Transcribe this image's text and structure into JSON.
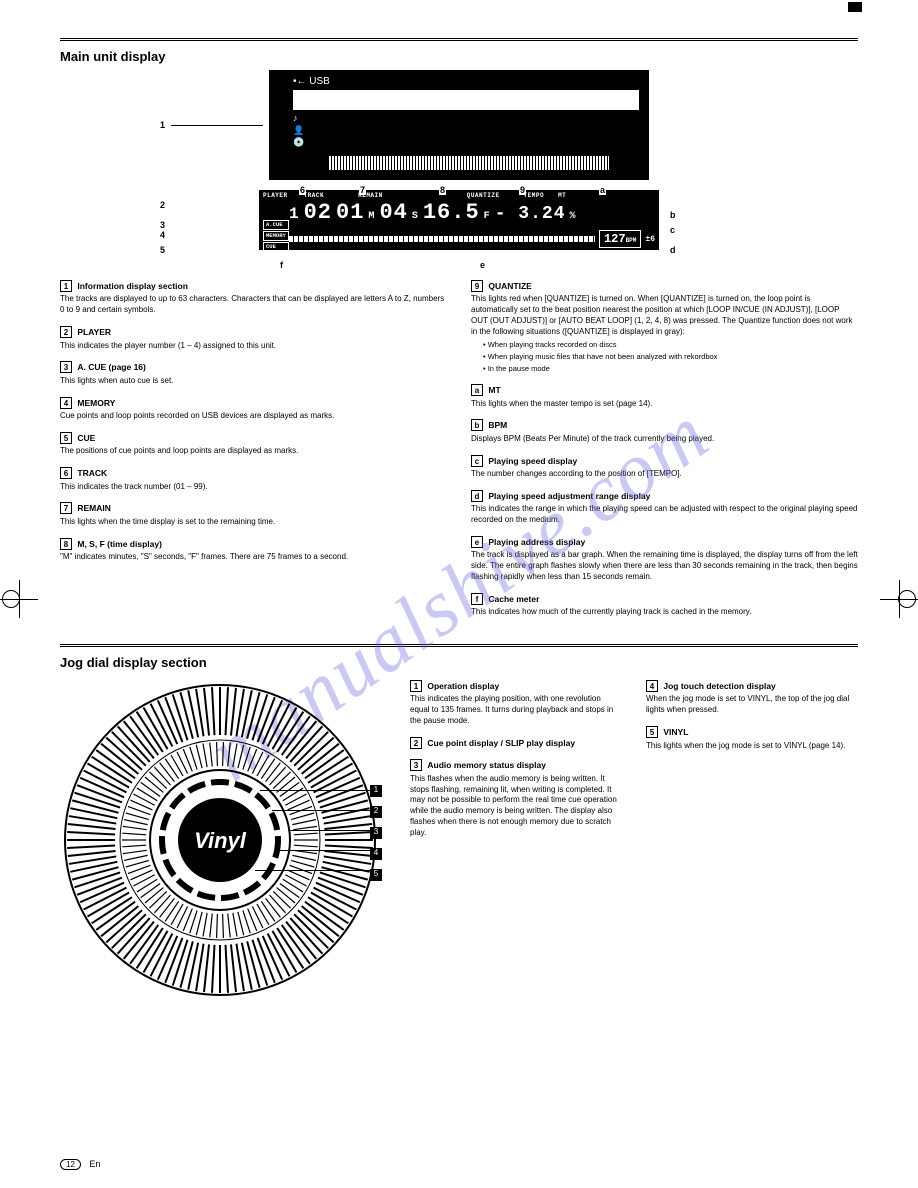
{
  "watermark": "manualshive.com",
  "main_display": {
    "section_title": "Main unit display",
    "usb_icon_label": "USB",
    "info_icons": [
      "♪",
      "👤",
      "💿"
    ],
    "leader_numbers": [
      "1",
      "2",
      "3",
      "4",
      "5",
      "6",
      "7",
      "8",
      "9",
      "a",
      "b",
      "c",
      "d",
      "e",
      "f"
    ]
  },
  "lcd": {
    "top_labels": [
      "PLAYER",
      "TRACK",
      "REMAIN",
      "",
      "QUANTIZE",
      "TEMPO",
      "MT"
    ],
    "side_labels": [
      "A.CUE",
      "MEMORY",
      "CUE"
    ],
    "player": "1",
    "track": "02",
    "time_m": "01",
    "time_m_unit": "M",
    "time_s": "04",
    "time_s_unit": "S",
    "time_f": "16.5",
    "time_f_unit": "F",
    "tempo": "- 3.24",
    "tempo_unit": "%",
    "bpm": "127",
    "bpm_unit": "BPM",
    "range": "±6"
  },
  "items_left": [
    {
      "n": "1",
      "title": "Information display section",
      "body": "The tracks are displayed to up to 63 characters. Characters that can be displayed are letters A to Z, numbers 0 to 9 and certain symbols."
    },
    {
      "n": "2",
      "title": "PLAYER",
      "body": "This indicates the player number (1 – 4) assigned to this unit."
    },
    {
      "n": "3",
      "title": "A. CUE (page 16)",
      "body": "This lights when auto cue is set."
    },
    {
      "n": "4",
      "title": "MEMORY",
      "body": "Cue points and loop points recorded on USB devices are displayed as marks."
    },
    {
      "n": "5",
      "title": "CUE",
      "body": "The positions of cue points and loop points are displayed as marks."
    },
    {
      "n": "6",
      "title": "TRACK",
      "body": "This indicates the track number (01 – 99)."
    },
    {
      "n": "7",
      "title": "REMAIN",
      "body": "This lights when the time display is set to the remaining time."
    },
    {
      "n": "8",
      "title": "M, S, F (time display)",
      "body": "\"M\" indicates minutes, \"S\" seconds, \"F\" frames. There are 75 frames to a second."
    }
  ],
  "items_right": [
    {
      "n": "9",
      "title": "QUANTIZE",
      "body": "This lights red when [QUANTIZE] is turned on.\nWhen [QUANTIZE] is turned on, the loop point is automatically set to the beat position nearest the position at which [LOOP IN/CUE (IN ADJUST)], [LOOP OUT (OUT ADJUST)] or [AUTO BEAT LOOP] (1, 2, 4, 8) was pressed.\nThe Quantize function does not work in the following situations ([QUANTIZE] is displayed in gray):",
      "sub": [
        "When playing tracks recorded on discs",
        "When playing music files that have not been analyzed with rekordbox",
        "In the pause mode"
      ]
    },
    {
      "n": "a",
      "title": "MT",
      "body": "This lights when the master tempo is set (page 14)."
    },
    {
      "n": "b",
      "title": "BPM",
      "body": "Displays BPM (Beats Per Minute) of the track currently being played."
    },
    {
      "n": "c",
      "title": "Playing speed display",
      "body": "The number changes according to the position of [TEMPO]."
    },
    {
      "n": "d",
      "title": "Playing speed adjustment range display",
      "body": "This indicates the range in which the playing speed can be adjusted with respect to the original playing speed recorded on the medium."
    },
    {
      "n": "e",
      "title": "Playing address display",
      "body": "The track is displayed as a bar graph. When the remaining time is displayed, the display turns off from the left side. The entire graph flashes slowly when there are less than 30 seconds remaining in the track, then begins flashing rapidly when less than 15 seconds remain."
    },
    {
      "n": "f",
      "title": "Cache meter",
      "body": "This indicates how much of the currently playing track is cached in the memory."
    }
  ],
  "jog": {
    "section_title": "Jog dial display section",
    "center_text": "Vinyl",
    "callouts": [
      "1",
      "2",
      "3",
      "4",
      "5"
    ],
    "items_left": [
      {
        "n": "1",
        "title": "Operation display",
        "body": "This indicates the playing position, with one revolution equal to 135 frames. It turns during playback and stops in the pause mode."
      },
      {
        "n": "2",
        "title": "Cue point display / SLIP play display"
      },
      {
        "n": "3",
        "title": "Audio memory status display",
        "body": "This flashes when the audio memory is being written. It stops flashing, remaining lit, when writing is completed.\nIt may not be possible to perform the real time cue operation while the audio memory is being written.\nThe display also flashes when there is not enough memory due to scratch play."
      }
    ],
    "items_right": [
      {
        "n": "4",
        "title": "Jog touch detection display",
        "body": "When the jog mode is set to VINYL, the top of the jog dial lights when pressed."
      },
      {
        "n": "5",
        "title": "VINYL",
        "body": "This lights when the jog mode is set to VINYL (page 14)."
      }
    ]
  },
  "footer": {
    "page": "12",
    "text": "En"
  }
}
